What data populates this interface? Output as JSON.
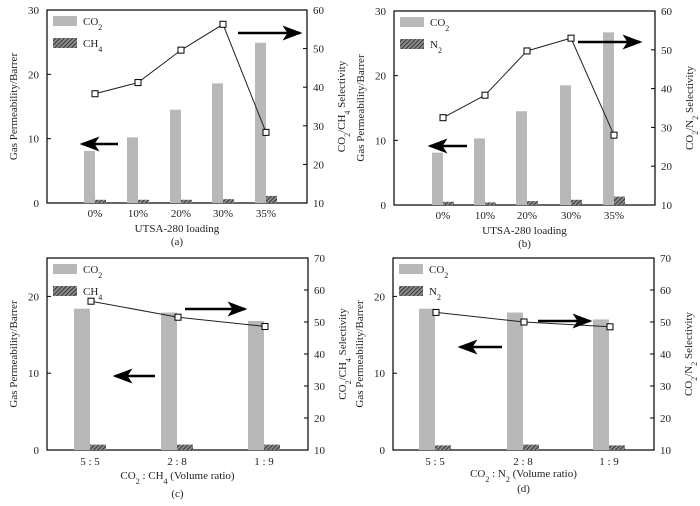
{
  "chart_data": [
    {
      "id": "a",
      "type": "bar",
      "caption": "(a)",
      "categories": [
        "0%",
        "10%",
        "20%",
        "30%",
        "35%"
      ],
      "xlabel": "UTSA-280 loading",
      "ylabel": "Gas Permeability/Barrer",
      "ylabel_right": "CO2/CH4 Selectivity",
      "ylim": [
        0,
        30
      ],
      "yticks": [
        0,
        10,
        20,
        30
      ],
      "ylim_right": [
        10,
        60
      ],
      "yticks_right": [
        10,
        20,
        30,
        40,
        50,
        60
      ],
      "series": [
        {
          "name": "CO2",
          "kind": "bar",
          "axis": "left",
          "color": "#b8b8b8",
          "values": [
            8.1,
            10.2,
            14.5,
            18.6,
            24.9
          ]
        },
        {
          "name": "CH4",
          "kind": "bar",
          "axis": "left",
          "color": "#555555",
          "hatch": true,
          "values": [
            0.5,
            0.5,
            0.5,
            0.6,
            1.1
          ]
        },
        {
          "name": "CO2/CH4 Selectivity",
          "kind": "line",
          "axis": "right",
          "marker": "square",
          "values": [
            38.3,
            41.2,
            49.6,
            56.3,
            28.3
          ]
        }
      ],
      "legend": [
        {
          "label": "CO2",
          "sub": "2"
        },
        {
          "label": "CH4",
          "sub": "4"
        }
      ],
      "legend_position": "top-left",
      "annotations": [
        "arrow pointing left (left axis)",
        "arrow pointing right (right axis)"
      ]
    },
    {
      "id": "b",
      "type": "bar",
      "caption": "(b)",
      "categories": [
        "0%",
        "10%",
        "20%",
        "30%",
        "35%"
      ],
      "xlabel": "UTSA-280 loading",
      "ylabel": "Gas Permeability/Barrer",
      "ylabel_right": "CO2/N2 Selectivity",
      "ylim": [
        0,
        30
      ],
      "yticks": [
        0,
        10,
        20,
        30
      ],
      "ylim_right": [
        10,
        60
      ],
      "yticks_right": [
        10,
        20,
        30,
        40,
        50,
        60
      ],
      "series": [
        {
          "name": "CO2",
          "kind": "bar",
          "axis": "left",
          "color": "#b8b8b8",
          "values": [
            8.1,
            10.3,
            14.5,
            18.5,
            26.7
          ]
        },
        {
          "name": "N2",
          "kind": "bar",
          "axis": "left",
          "color": "#555555",
          "hatch": true,
          "values": [
            0.5,
            0.4,
            0.6,
            0.8,
            1.3
          ]
        },
        {
          "name": "CO2/N2 Selectivity",
          "kind": "line",
          "axis": "right",
          "marker": "square",
          "values": [
            32.5,
            38.3,
            49.7,
            53.0,
            28.0
          ]
        }
      ],
      "legend": [
        {
          "label": "CO2",
          "sub": "2"
        },
        {
          "label": "N2",
          "sub": "2"
        }
      ],
      "legend_position": "top-left",
      "annotations": [
        "arrow pointing left (left axis)",
        "arrow pointing right (right axis)"
      ]
    },
    {
      "id": "c",
      "type": "bar",
      "caption": "(c)",
      "categories": [
        "5 : 5",
        "2 : 8",
        "1 : 9"
      ],
      "xlabel": "CO2 : CH4 (Volume ratio)",
      "ylabel": "Gas Permeability/Barrer",
      "ylabel_right": "CO2/CH4 Selectivity",
      "ylim": [
        0,
        25
      ],
      "yticks": [
        0,
        10,
        20
      ],
      "ylim_right": [
        10,
        70
      ],
      "yticks_right": [
        10,
        20,
        30,
        40,
        50,
        60,
        70
      ],
      "series": [
        {
          "name": "CO2",
          "kind": "bar",
          "axis": "left",
          "color": "#b8b8b8",
          "values": [
            18.4,
            17.9,
            16.8
          ]
        },
        {
          "name": "CH4",
          "kind": "bar",
          "axis": "left",
          "color": "#555555",
          "hatch": true,
          "values": [
            0.7,
            0.7,
            0.7
          ]
        },
        {
          "name": "CO2/CH4 Selectivity",
          "kind": "line",
          "axis": "right",
          "marker": "square",
          "values": [
            56.5,
            51.5,
            48.6
          ]
        }
      ],
      "legend": [
        {
          "label": "CO2",
          "sub": "2"
        },
        {
          "label": "CH4",
          "sub": "4"
        }
      ],
      "legend_position": "top-left",
      "annotations": [
        "arrow pointing left (left axis)",
        "arrow pointing right (right axis)"
      ]
    },
    {
      "id": "d",
      "type": "bar",
      "caption": "(d)",
      "categories": [
        "5 : 5",
        "2 : 8",
        "1 : 9"
      ],
      "xlabel": "CO2 : N2 (Volume ratio)",
      "ylabel": "Gas Permeability/Barrer",
      "ylabel_right": "CO2/N2 Selectivity",
      "ylim": [
        0,
        25
      ],
      "yticks": [
        0,
        10,
        20
      ],
      "ylim_right": [
        10,
        70
      ],
      "yticks_right": [
        10,
        20,
        30,
        40,
        50,
        60,
        70
      ],
      "series": [
        {
          "name": "CO2",
          "kind": "bar",
          "axis": "left",
          "color": "#b8b8b8",
          "values": [
            18.4,
            17.9,
            17.0
          ]
        },
        {
          "name": "N2",
          "kind": "bar",
          "axis": "left",
          "color": "#555555",
          "hatch": true,
          "values": [
            0.6,
            0.7,
            0.6
          ]
        },
        {
          "name": "CO2/N2 Selectivity",
          "kind": "line",
          "axis": "right",
          "marker": "square",
          "values": [
            53.0,
            50.0,
            48.5
          ]
        }
      ],
      "legend": [
        {
          "label": "CO2",
          "sub": "2"
        },
        {
          "label": "N2",
          "sub": "2"
        }
      ],
      "legend_position": "top-left",
      "annotations": [
        "arrow pointing left (left axis)",
        "arrow pointing right (right axis)"
      ]
    }
  ]
}
